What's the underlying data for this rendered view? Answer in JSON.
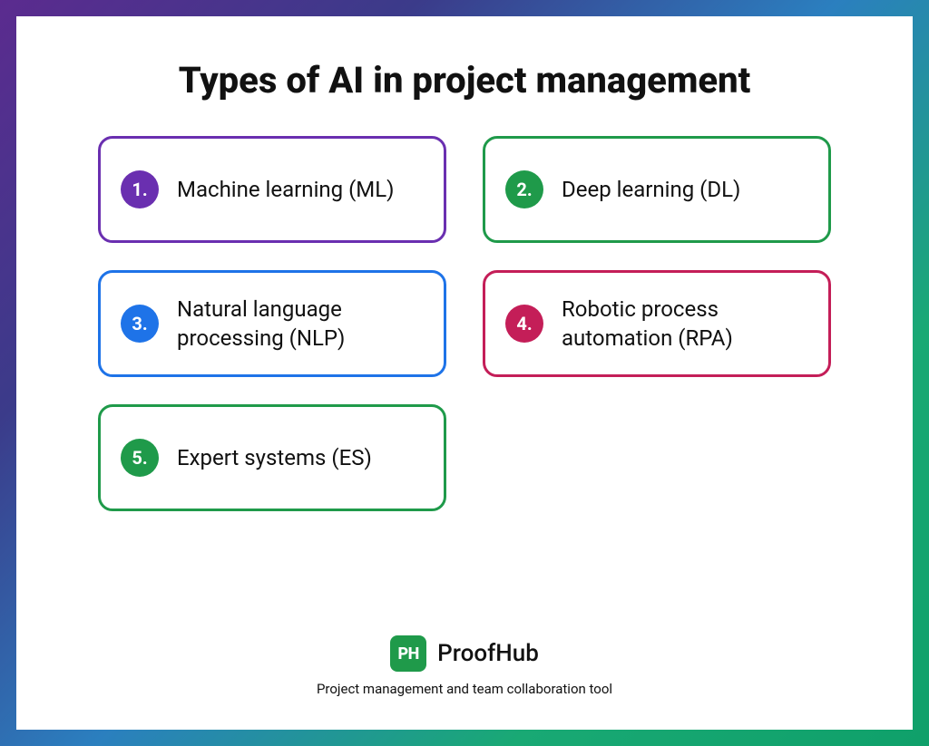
{
  "type": "infographic",
  "background_color": "#ffffff",
  "frame_gradient": [
    "#5b2b8f",
    "#3b3b8a",
    "#2b7fbf",
    "#19a974",
    "#0fa06a"
  ],
  "title": {
    "text": "Types of AI in project management",
    "fontsize": 40,
    "font_weight": 800,
    "color": "#111111"
  },
  "grid": {
    "columns": 2,
    "column_gap": 40,
    "row_gap": 30
  },
  "card_style": {
    "border_width": 3,
    "border_radius": 16,
    "label_fontsize": 24,
    "badge_diameter": 42,
    "badge_fontsize": 20,
    "badge_text_color": "#ffffff"
  },
  "items": [
    {
      "n": "1.",
      "label": "Machine learning (ML)",
      "border_color": "#6a2fb0",
      "badge_color": "#6a2fb0"
    },
    {
      "n": "2.",
      "label": "Deep learning (DL)",
      "border_color": "#1f9a4a",
      "badge_color": "#1f9a4a"
    },
    {
      "n": "3.",
      "label": "Natural language processing (NLP)",
      "border_color": "#1e73e8",
      "badge_color": "#1e73e8"
    },
    {
      "n": "4.",
      "label": "Robotic process automation (RPA)",
      "border_color": "#c41e58",
      "badge_color": "#c41e58"
    },
    {
      "n": "5.",
      "label": "Expert systems (ES)",
      "border_color": "#1f9a4a",
      "badge_color": "#1f9a4a"
    }
  ],
  "footer": {
    "brand_icon_text": "PH",
    "brand_icon_bg": "#1f9a4a",
    "brand_icon_fg": "#ffffff",
    "brand_name": "ProofHub",
    "brand_fontsize": 26,
    "tagline": "Project management and team collaboration tool",
    "tagline_fontsize": 15
  }
}
